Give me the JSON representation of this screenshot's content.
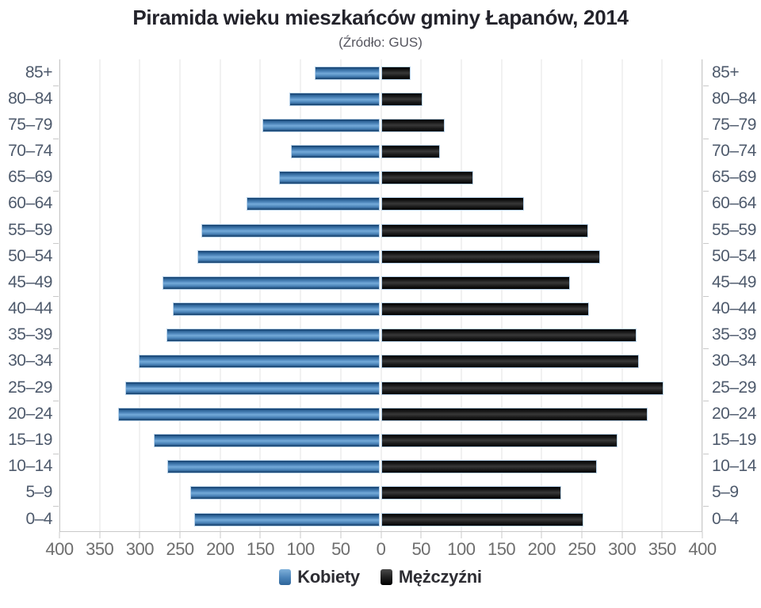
{
  "title": "Piramida wieku mieszkańców gminy Łapanów, 2014",
  "subtitle": "(Źródło: GUS)",
  "legend": {
    "female": "Kobiety",
    "male": "Mężczyźni"
  },
  "colors": {
    "female_main": "#4a83b8",
    "female_light": "#74aad9",
    "female_dark": "#123c67",
    "male_light": "#383838",
    "male_dark": "#000000",
    "bar_outline": "#b9d3ea",
    "grid": "#e3e3e3",
    "axis": "#c9c9c9",
    "category_label": "#4e5a6c",
    "value_label": "#6e6e6e"
  },
  "chart_data": {
    "type": "bar",
    "subtype": "population-pyramid",
    "title": "Piramida wieku mieszkańców gminy Łapanów, 2014",
    "subtitle": "(Źródło: GUS)",
    "categories": [
      "85+",
      "80–84",
      "75–79",
      "70–74",
      "65–69",
      "60–64",
      "55–59",
      "50–54",
      "45–49",
      "40–44",
      "35–39",
      "30–34",
      "25–29",
      "20–24",
      "15–19",
      "10–14",
      "5–9",
      "0–4"
    ],
    "series": [
      {
        "name": "Kobiety",
        "side": "left",
        "values": [
          80,
          112,
          146,
          110,
          125,
          165,
          221,
          226,
          270,
          257,
          265,
          299,
          316,
          325,
          281,
          264,
          235,
          230
        ]
      },
      {
        "name": "Mężczyźni",
        "side": "right",
        "values": [
          37,
          52,
          79,
          73,
          115,
          178,
          258,
          273,
          235,
          259,
          318,
          321,
          352,
          332,
          294,
          269,
          224,
          252
        ]
      }
    ],
    "x_axis": {
      "tick_labels": [
        400,
        350,
        300,
        250,
        200,
        150,
        100,
        50,
        0,
        50,
        100,
        150,
        200,
        250,
        300,
        350,
        400
      ],
      "max_each_side": 400,
      "gridlines": true
    },
    "legend_position": "bottom"
  }
}
